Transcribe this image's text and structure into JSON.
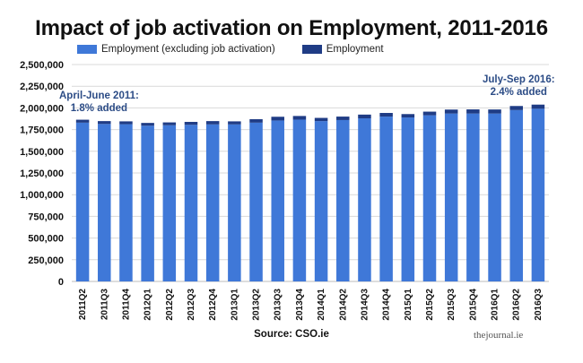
{
  "chart_data": {
    "type": "bar",
    "stacked": true,
    "title": "Impact of job activation on Employment, 2011-2016",
    "categories": [
      "2011Q2",
      "2011Q3",
      "2011Q4",
      "2012Q1",
      "2012Q2",
      "2012Q3",
      "2012Q4",
      "2013Q1",
      "2013Q2",
      "2013Q3",
      "2013Q4",
      "2014Q1",
      "2014Q2",
      "2014Q3",
      "2014Q4",
      "2015Q1",
      "2015Q2",
      "2015Q3",
      "2015Q4",
      "2016Q1",
      "2016Q2",
      "2016Q3"
    ],
    "series": [
      {
        "name": "Employment (excluding job activation)",
        "color": "#3f78d8",
        "values": [
          1830000,
          1815000,
          1812000,
          1795000,
          1800000,
          1805000,
          1810000,
          1810000,
          1830000,
          1855000,
          1865000,
          1848000,
          1860000,
          1880000,
          1900000,
          1890000,
          1915000,
          1935000,
          1935000,
          1935000,
          1975000,
          1990000
        ]
      },
      {
        "name": "Employment",
        "color": "#1f3c85",
        "values": [
          34000,
          33000,
          33000,
          32000,
          33000,
          34000,
          38000,
          35000,
          40000,
          43000,
          42000,
          37000,
          40000,
          43000,
          42000,
          39000,
          42000,
          46000,
          48000,
          47000,
          47000,
          48000
        ]
      }
    ],
    "ylim": [
      0,
      2500000
    ],
    "yticks": [
      "0",
      "250,000",
      "500,000",
      "750,000",
      "1,000,000",
      "1,250,000",
      "1,500,000",
      "1,750,000",
      "2,000,000",
      "2,250,000",
      "2,500,000"
    ],
    "grid": true,
    "legend_position": "top-left",
    "annotations": [
      {
        "id": "start",
        "lines": [
          "April-June 2011:",
          "1.8% added"
        ]
      },
      {
        "id": "end",
        "lines": [
          "July-Sep 2016:",
          "2.4% added"
        ]
      }
    ],
    "source": "Source: CSO.ie",
    "brand": "thejournal.ie",
    "annotation_color": "#2c4c86",
    "grid_color": "#d9d9d9"
  }
}
